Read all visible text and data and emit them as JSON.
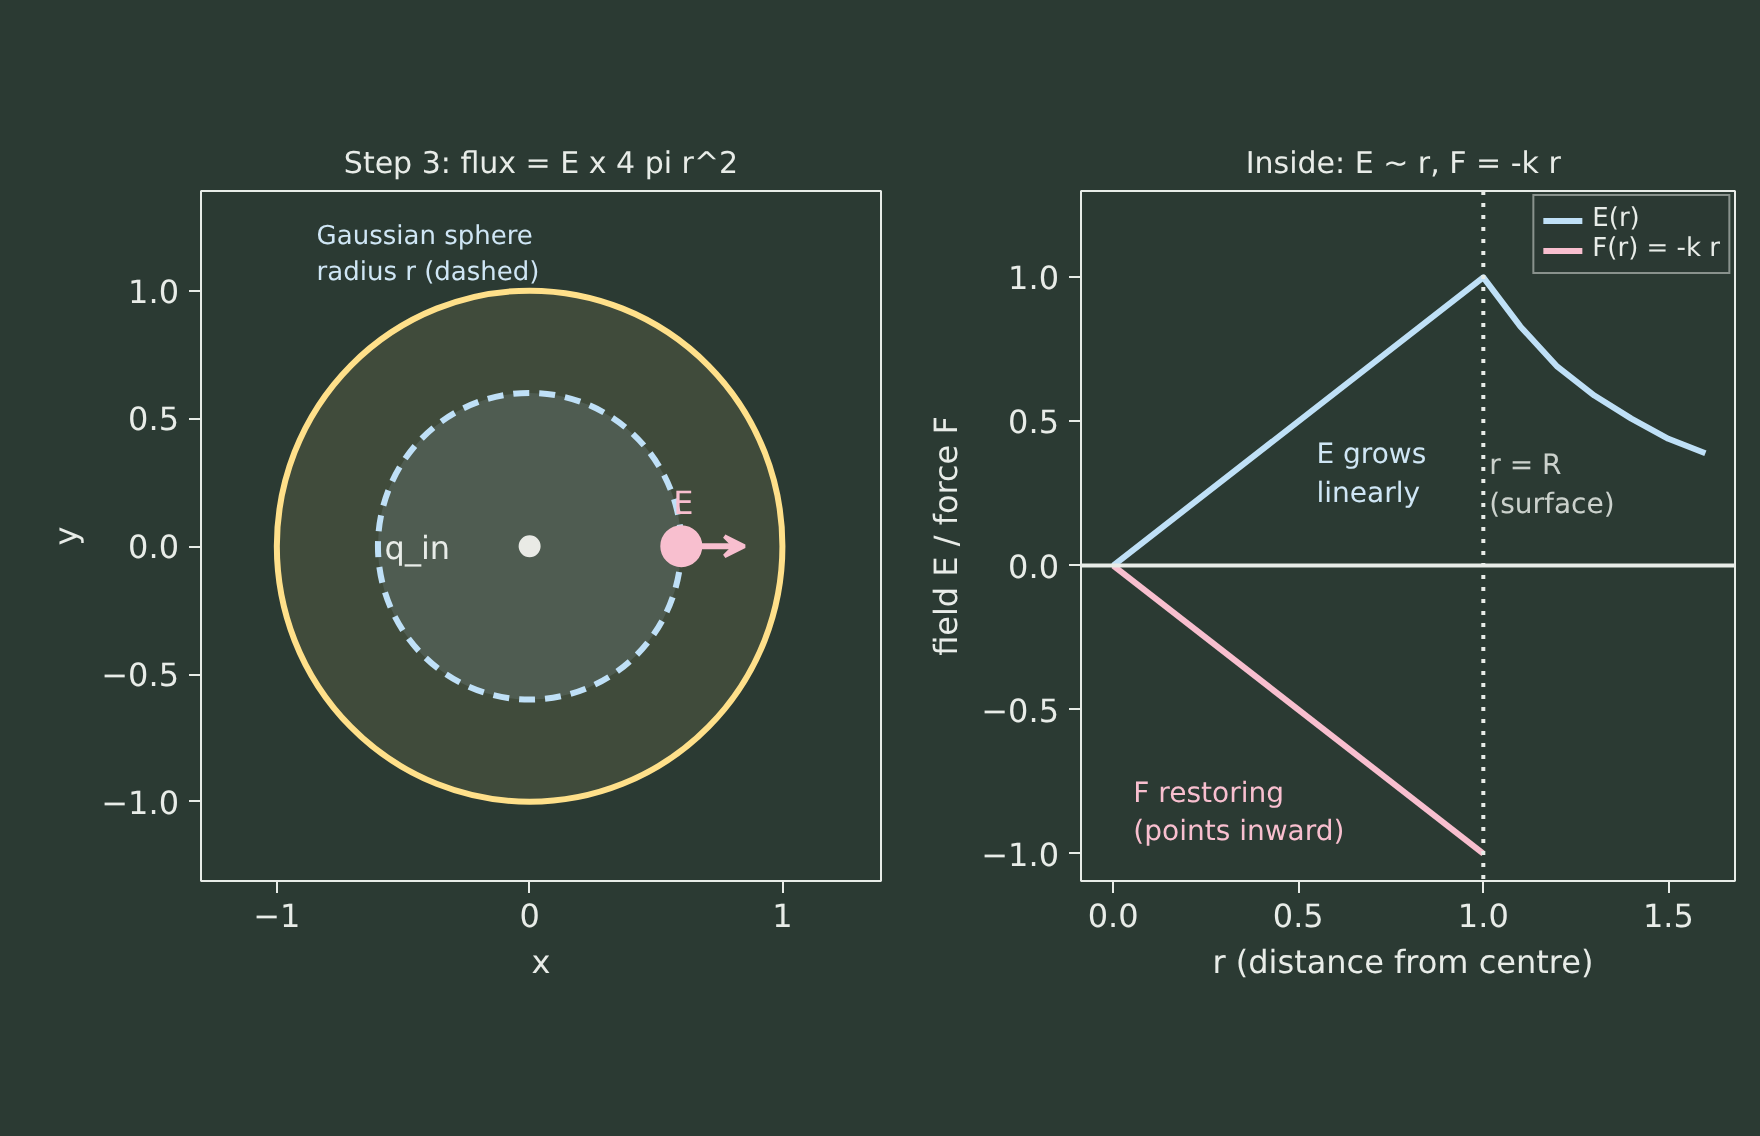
{
  "chart_data": [
    {
      "type": "scatter",
      "title": "Step 3: flux = E x 4 pi r^2",
      "xlabel": "x",
      "ylabel": "y",
      "xlim": [
        -1.3,
        1.39
      ],
      "ylim": [
        -1.31,
        1.39
      ],
      "xticks": [
        {
          "value": -1,
          "label": "−1"
        },
        0,
        1
      ],
      "yticks": [
        {
          "value": -1,
          "label": "−1.0"
        },
        {
          "value": -0.5,
          "label": "−0.5"
        },
        {
          "value": 0,
          "label": "0.0"
        },
        {
          "value": 0.5,
          "label": "0.5"
        },
        {
          "value": 1,
          "label": "1.0"
        }
      ],
      "grid": false,
      "legend": false,
      "annotations": [
        "Gaussian sphere\nradius r (dashed)",
        "q_in",
        {
          "text": "E",
          "x": 0.6,
          "y": 0
        }
      ],
      "series": [
        {
          "type": "scatter",
          "color": "#eeeeee",
          "marker": "circle",
          "x": [
            0
          ],
          "values": [
            0
          ]
        },
        {
          "type": "scatter",
          "color": "#f8bfcf",
          "marker": "circle",
          "x": [
            0.6
          ],
          "values": [
            0
          ]
        }
      ]
    },
    {
      "type": "line",
      "title": "Inside: E ~ r,  F = -k r",
      "xlabel": "r  (distance from centre)",
      "ylabel": "field E / force F",
      "xlim": [
        -0.087,
        1.68
      ],
      "ylim": [
        -1.095,
        1.3
      ],
      "xticks": [
        {
          "value": 0,
          "label": "0.0"
        },
        0.5,
        {
          "value": 1,
          "label": "1.0"
        },
        1.5
      ],
      "yticks": [
        {
          "value": -1,
          "label": "−1.0"
        },
        {
          "value": -0.5,
          "label": "−0.5"
        },
        {
          "value": 0,
          "label": "0.0"
        },
        0.5,
        {
          "value": 1,
          "label": "1.0"
        }
      ],
      "grid": false,
      "legend": "top right",
      "ref_lines": [
        {
          "axis": "y",
          "value": 0,
          "label": null,
          "color": "#e8ece8",
          "line_style": "solid"
        },
        {
          "axis": "x",
          "value": 1,
          "label": "r = R\n(surface)",
          "color": "#e8ece8",
          "line_style": "dotted"
        }
      ],
      "annotations": [
        "E grows\nlinearly",
        "F restoring\n(points inward)"
      ],
      "series": [
        {
          "name": "E(r)",
          "color": "#bfe0f7",
          "line_style": "solid",
          "x": [
            0,
            1,
            1.1,
            1.2,
            1.3,
            1.4,
            1.5,
            1.6
          ],
          "values": [
            0,
            1,
            0.83,
            0.69,
            0.59,
            0.51,
            0.44,
            0.39
          ]
        },
        {
          "name": "F(r) = -k r",
          "color": "#f8bfcf",
          "line_style": "solid",
          "x": [
            0,
            1
          ],
          "values": [
            0,
            -1
          ]
        }
      ]
    }
  ]
}
